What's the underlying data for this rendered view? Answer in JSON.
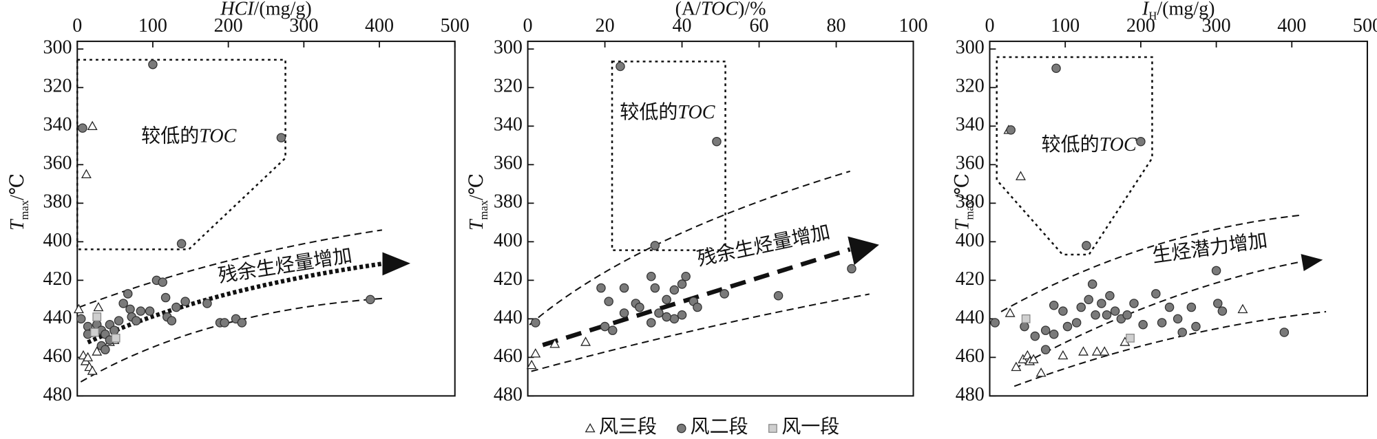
{
  "chart_data": [
    {
      "type": "scatter",
      "x_label": [
        {
          "text": "HCI",
          "italic": true
        },
        {
          "text": "/(mg/g)"
        }
      ],
      "y_label": [
        {
          "text": "T",
          "italic": true
        },
        {
          "text": "max",
          "sub": true
        },
        {
          "text": "/℃"
        }
      ],
      "xlim": [
        0,
        500
      ],
      "xticks": [
        0,
        100,
        200,
        300,
        400,
        500
      ],
      "ylim": [
        296,
        480
      ],
      "yticks": [
        300,
        320,
        340,
        360,
        380,
        400,
        420,
        440,
        460,
        480
      ],
      "series": [
        {
          "x": [
            20,
            12,
            2,
            28,
            8,
            11,
            14,
            16,
            20,
            26,
            43,
            49
          ],
          "y": [
            340,
            365,
            435,
            434,
            459,
            462,
            460,
            465,
            467,
            457,
            452,
            451
          ]
        },
        {
          "x": [
            100,
            7,
            270,
            138,
            388,
            5,
            14,
            20,
            26,
            32,
            37,
            43,
            49,
            55,
            61,
            67,
            70,
            72,
            78,
            84,
            96,
            105,
            113,
            117,
            119,
            125,
            131,
            143,
            172,
            189,
            195,
            210,
            218,
            32,
            37,
            14,
            43
          ],
          "y": [
            308,
            341,
            346,
            401,
            430,
            440,
            444,
            447,
            443,
            446,
            448,
            443,
            446,
            441,
            432,
            427,
            435,
            439,
            441,
            436,
            436,
            420,
            421,
            429,
            439,
            441,
            434,
            431,
            432,
            442,
            442,
            440,
            442,
            454,
            456,
            448,
            451
          ]
        },
        {
          "x": [
            26,
            51,
            23
          ],
          "y": [
            439,
            450,
            447
          ]
        }
      ],
      "annotations": [
        [
          {
            "text": "较低的"
          },
          {
            "text": "TOC",
            "italic": true
          }
        ],
        [
          {
            "text": "残余生烃量增加"
          }
        ]
      ]
    },
    {
      "type": "scatter",
      "x_label": [
        {
          "text": "(A/"
        },
        {
          "text": "TOC",
          "italic": true
        },
        {
          "text": ")/%"
        }
      ],
      "y_label": [
        {
          "text": "T",
          "italic": true
        },
        {
          "text": "max",
          "sub": true
        },
        {
          "text": "/℃"
        }
      ],
      "xlim": [
        0,
        100
      ],
      "xticks": [
        0,
        20,
        40,
        60,
        80,
        100
      ],
      "ylim": [
        296,
        480
      ],
      "yticks": [
        300,
        320,
        340,
        360,
        380,
        400,
        420,
        440,
        460,
        480
      ],
      "series": [
        {
          "x": [
            1,
            2,
            7,
            15
          ],
          "y": [
            464,
            458,
            453,
            452
          ]
        },
        {
          "x": [
            24,
            49,
            33,
            84,
            2,
            19,
            21,
            20,
            22,
            25,
            25,
            28,
            29,
            32,
            32,
            33,
            34,
            36,
            38,
            40,
            40,
            41,
            43,
            44,
            51,
            65,
            38,
            36
          ],
          "y": [
            309,
            348,
            402,
            414,
            442,
            424,
            431,
            444,
            446,
            424,
            437,
            432,
            434,
            442,
            418,
            424,
            437,
            430,
            425,
            422,
            438,
            418,
            431,
            434,
            427,
            428,
            440,
            439
          ]
        },
        {
          "x": [],
          "y": []
        }
      ],
      "annotations": [
        [
          {
            "text": "较低的"
          },
          {
            "text": "TOC",
            "italic": true
          }
        ],
        [
          {
            "text": "残余生烃量增加"
          }
        ]
      ]
    },
    {
      "type": "scatter",
      "x_label": [
        {
          "text": "I",
          "italic": true
        },
        {
          "text": "H",
          "sub": true
        },
        {
          "text": "/(mg/g)"
        }
      ],
      "y_label": [
        {
          "text": "T",
          "italic": true
        },
        {
          "text": "max",
          "sub": true
        },
        {
          "text": "/℃"
        }
      ],
      "xlim": [
        0,
        500
      ],
      "xticks": [
        0,
        100,
        200,
        300,
        400,
        500
      ],
      "ylim": [
        296,
        480
      ],
      "yticks": [
        300,
        320,
        340,
        360,
        380,
        400,
        420,
        440,
        460,
        480
      ],
      "series": [
        {
          "x": [
            25,
            41,
            27,
            35,
            44,
            50,
            53,
            58,
            68,
            97,
            124,
            142,
            152,
            179,
            335
          ],
          "y": [
            342,
            366,
            437,
            465,
            461,
            459,
            462,
            461,
            468,
            459,
            457,
            457,
            457,
            452,
            435
          ]
        },
        {
          "x": [
            88,
            28,
            200,
            128,
            300,
            390,
            7,
            46,
            60,
            74,
            85,
            97,
            103,
            115,
            121,
            131,
            136,
            140,
            148,
            155,
            159,
            166,
            174,
            182,
            191,
            203,
            220,
            228,
            238,
            249,
            255,
            267,
            273,
            302,
            308,
            74,
            85
          ],
          "y": [
            310,
            342,
            348,
            402,
            415,
            447,
            442,
            444,
            449,
            446,
            433,
            436,
            444,
            442,
            434,
            430,
            422,
            438,
            432,
            438,
            428,
            436,
            440,
            438,
            432,
            443,
            427,
            442,
            434,
            440,
            447,
            434,
            444,
            432,
            436,
            456,
            448
          ]
        },
        {
          "x": [
            48,
            186
          ],
          "y": [
            440,
            450
          ]
        }
      ],
      "annotations": [
        [
          {
            "text": "较低的"
          },
          {
            "text": "TOC",
            "italic": true
          }
        ],
        [
          {
            "text": "生烃潜力增加"
          }
        ]
      ]
    }
  ],
  "legend": {
    "series": [
      {
        "name": "风三段",
        "marker": "triangle",
        "color": "#ffffff"
      },
      {
        "name": "风二段",
        "marker": "circle",
        "color": "#7a7a7a"
      },
      {
        "name": "风一段",
        "marker": "square",
        "color": "#cfcfcf"
      }
    ]
  }
}
